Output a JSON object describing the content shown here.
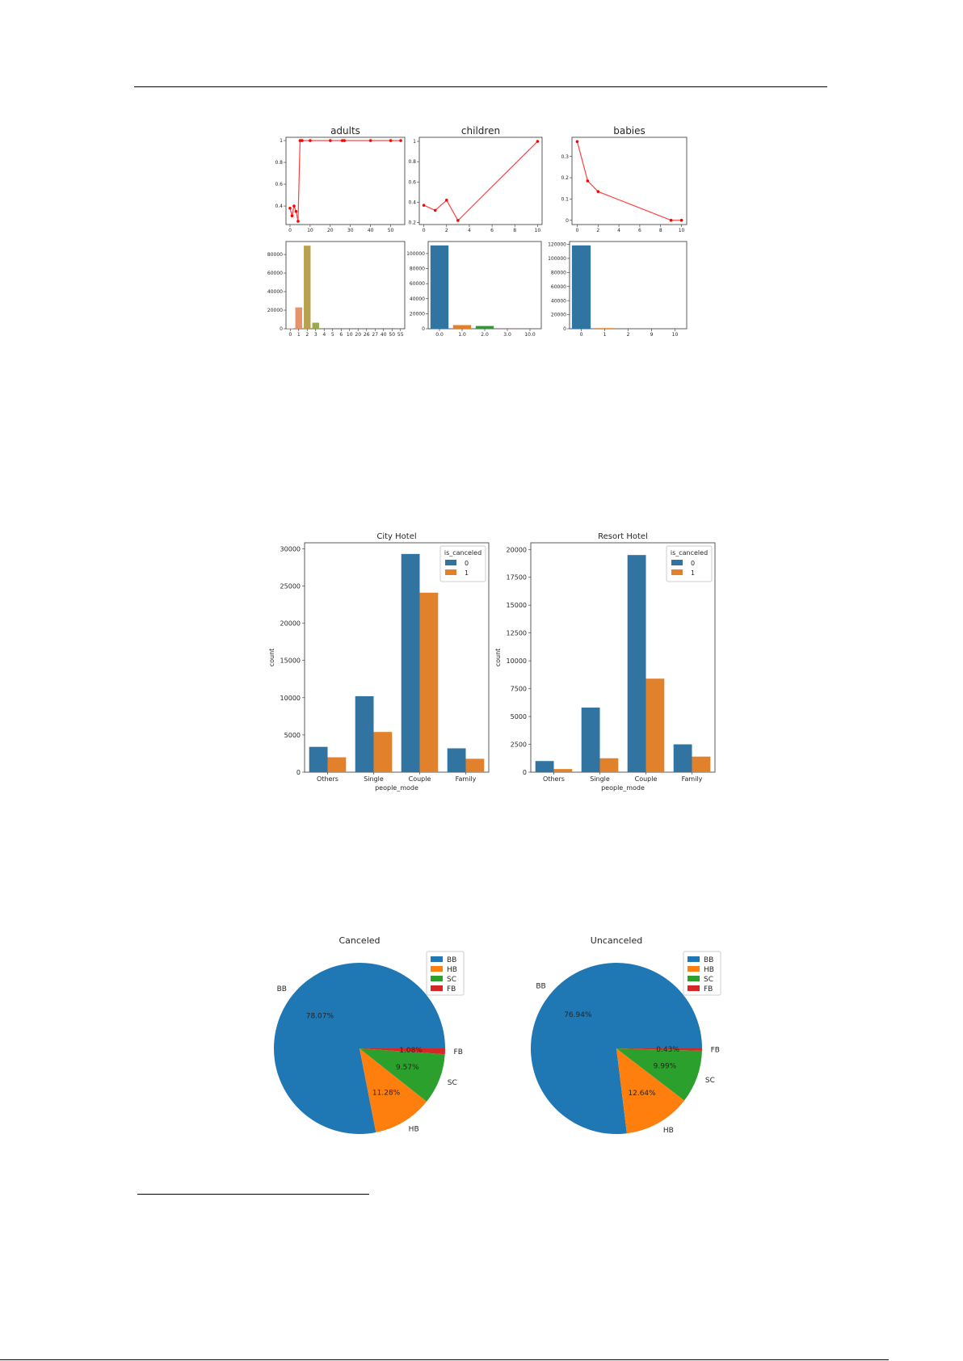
{
  "charts": {
    "adults_rate": {
      "type": "line",
      "title": "adults",
      "x": [
        0,
        1,
        2,
        3,
        4,
        5,
        6,
        10,
        20,
        26,
        27,
        40,
        50,
        55
      ],
      "y": [
        0.38,
        0.31,
        0.4,
        0.35,
        0.26,
        1.0,
        1.0,
        1.0,
        1.0,
        1.0,
        1.0,
        1.0,
        1.0,
        1.0
      ],
      "xticks": [
        0,
        10,
        20,
        30,
        40,
        50
      ],
      "yticks": [
        0.4,
        0.6,
        0.8,
        1.0
      ],
      "xlim": [
        -2,
        57
      ],
      "ylim": [
        0.23,
        1.03
      ],
      "color": "#ff0000"
    },
    "children_rate": {
      "type": "line",
      "title": "children",
      "x": [
        0,
        1,
        2,
        3,
        10
      ],
      "y": [
        0.37,
        0.32,
        0.42,
        0.22,
        1.0
      ],
      "xticks": [
        0,
        2,
        4,
        6,
        8,
        10
      ],
      "yticks": [
        0.2,
        0.4,
        0.6,
        0.8,
        1.0
      ],
      "xlim": [
        -0.4,
        10.4
      ],
      "ylim": [
        0.18,
        1.04
      ],
      "color": "#ff0000"
    },
    "babies_rate": {
      "type": "line",
      "title": "babies",
      "x": [
        0,
        1,
        2,
        9,
        10
      ],
      "y": [
        0.37,
        0.185,
        0.135,
        0.0,
        0.0
      ],
      "xticks": [
        0,
        2,
        4,
        6,
        8,
        10
      ],
      "yticks": [
        0.0,
        0.1,
        0.2,
        0.3
      ],
      "xlim": [
        -0.5,
        10.5
      ],
      "ylim": [
        -0.02,
        0.39
      ],
      "color": "#ff0000"
    },
    "adults_count": {
      "type": "bar",
      "categories": [
        "0",
        "1",
        "2",
        "3",
        "4",
        "5",
        "6",
        "10",
        "20",
        "26",
        "27",
        "40",
        "50",
        "55"
      ],
      "values": [
        400,
        23000,
        89500,
        6500,
        60,
        2,
        1,
        1,
        2,
        5,
        2,
        1,
        1,
        1
      ],
      "colors": [
        "#e8b09a",
        "#e6936b",
        "#b8a24f",
        "#9aaa4a",
        "#77a945",
        "#56ad5b",
        "#47ab80",
        "#48a99a",
        "#4aa6ad",
        "#4d9fc1",
        "#6a96cf",
        "#9388d2",
        "#b97fc9",
        "#d67cb6"
      ],
      "yticks": [
        0,
        20000,
        40000,
        60000,
        80000
      ],
      "ylim": [
        0,
        94000
      ]
    },
    "children_count": {
      "type": "bar",
      "categories": [
        "0.0",
        "1.0",
        "2.0",
        "3.0",
        "10.0"
      ],
      "values": [
        110800,
        4860,
        3650,
        76,
        1
      ],
      "colors": [
        "#3274a1",
        "#e1812c",
        "#3a923a",
        "#c03d3e",
        "#9372b2"
      ],
      "yticks": [
        0,
        20000,
        40000,
        60000,
        80000,
        100000
      ],
      "ylim": [
        0,
        116000
      ]
    },
    "babies_count": {
      "type": "bar",
      "categories": [
        "0",
        "1",
        "2",
        "9",
        "10"
      ],
      "values": [
        118470,
        900,
        15,
        1,
        1
      ],
      "colors": [
        "#3274a1",
        "#e1812c",
        "#3a923a",
        "#c03d3e",
        "#9372b2"
      ],
      "yticks": [
        0,
        20000,
        40000,
        60000,
        80000,
        100000,
        120000
      ],
      "ylim": [
        0,
        124000
      ]
    },
    "city_hotel": {
      "type": "bar",
      "title": "City Hotel",
      "xlabel": "people_mode",
      "ylabel": "count",
      "categories": [
        "Others",
        "Single",
        "Couple",
        "Family"
      ],
      "legend_title": "is_canceled",
      "series": [
        {
          "name": "0",
          "values": [
            3400,
            10200,
            29300,
            3200
          ],
          "color": "#3274a1"
        },
        {
          "name": "1",
          "values": [
            2000,
            5400,
            24100,
            1800
          ],
          "color": "#e1812c"
        }
      ],
      "yticks": [
        0,
        5000,
        10000,
        15000,
        20000,
        25000,
        30000
      ],
      "ylim": [
        0,
        30800
      ]
    },
    "resort_hotel": {
      "type": "bar",
      "title": "Resort Hotel",
      "xlabel": "people_mode",
      "ylabel": "count",
      "categories": [
        "Others",
        "Single",
        "Couple",
        "Family"
      ],
      "legend_title": "is_canceled",
      "series": [
        {
          "name": "0",
          "values": [
            1000,
            5800,
            19500,
            2500
          ],
          "color": "#3274a1"
        },
        {
          "name": "1",
          "values": [
            280,
            1250,
            8400,
            1400
          ],
          "color": "#e1812c"
        }
      ],
      "yticks": [
        0,
        2500,
        5000,
        7500,
        10000,
        12500,
        15000,
        17500,
        20000
      ],
      "ylim": [
        0,
        20600
      ]
    },
    "canceled_pie": {
      "type": "pie",
      "title": "Canceled",
      "labels": [
        "BB",
        "HB",
        "SC",
        "FB"
      ],
      "values": [
        78.07,
        11.28,
        9.57,
        1.08
      ],
      "pct_labels": [
        "78.07%",
        "11.28%",
        "9.57%",
        "1.08%"
      ],
      "colors": [
        "#1f77b4",
        "#ff7f0e",
        "#2ca02c",
        "#d62728"
      ],
      "legend": "top-right"
    },
    "uncanceled_pie": {
      "type": "pie",
      "title": "Uncanceled",
      "labels": [
        "BB",
        "HB",
        "SC",
        "FB"
      ],
      "values": [
        76.94,
        12.64,
        9.99,
        0.43
      ],
      "pct_labels": [
        "76.94%",
        "12.64%",
        "9.99%",
        "0.43%"
      ],
      "colors": [
        "#1f77b4",
        "#ff7f0e",
        "#2ca02c",
        "#d62728"
      ],
      "legend": "top-right"
    }
  }
}
